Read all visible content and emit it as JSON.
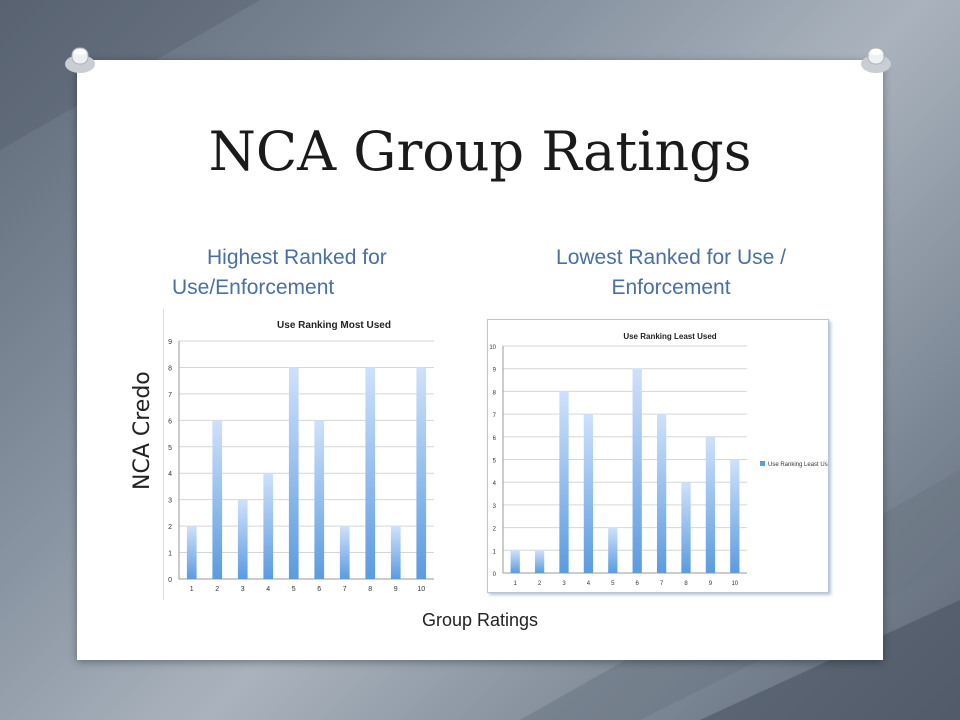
{
  "slide": {
    "title": "NCA Group Ratings",
    "left_heading_line1": "Highest Ranked for",
    "left_heading_line2": "Use/Enforcement",
    "right_heading_line1": "Lowest Ranked for Use /",
    "right_heading_line2": "Enforcement",
    "side_label": "NCA Credo",
    "footer": "Group Ratings"
  },
  "colors": {
    "heading": "#4a6fa5",
    "bar_top": "#cfe1fb",
    "bar_bottom": "#5b9be0"
  },
  "chart_data": [
    {
      "type": "bar",
      "title": "Use Ranking Most Used",
      "categories": [
        "1",
        "2",
        "3",
        "4",
        "5",
        "6",
        "7",
        "8",
        "9",
        "10"
      ],
      "values": [
        2,
        6,
        3,
        4,
        8,
        6,
        2,
        8,
        2,
        8
      ],
      "ylim": [
        0,
        9
      ],
      "yticks": [
        0,
        1,
        2,
        3,
        4,
        5,
        6,
        7,
        8,
        9
      ],
      "grid": true,
      "legend": ""
    },
    {
      "type": "bar",
      "title": "Use Ranking Least Used",
      "categories": [
        "1",
        "2",
        "3",
        "4",
        "5",
        "6",
        "7",
        "8",
        "9",
        "10"
      ],
      "series": [
        {
          "name": "Use Ranking Least Used",
          "values": [
            1,
            1,
            8,
            7,
            2,
            9,
            7,
            4,
            6,
            5
          ]
        }
      ],
      "ylim": [
        0,
        10
      ],
      "yticks": [
        0,
        1,
        2,
        3,
        4,
        5,
        6,
        7,
        8,
        9,
        10
      ],
      "grid": true,
      "legend": "right"
    }
  ]
}
